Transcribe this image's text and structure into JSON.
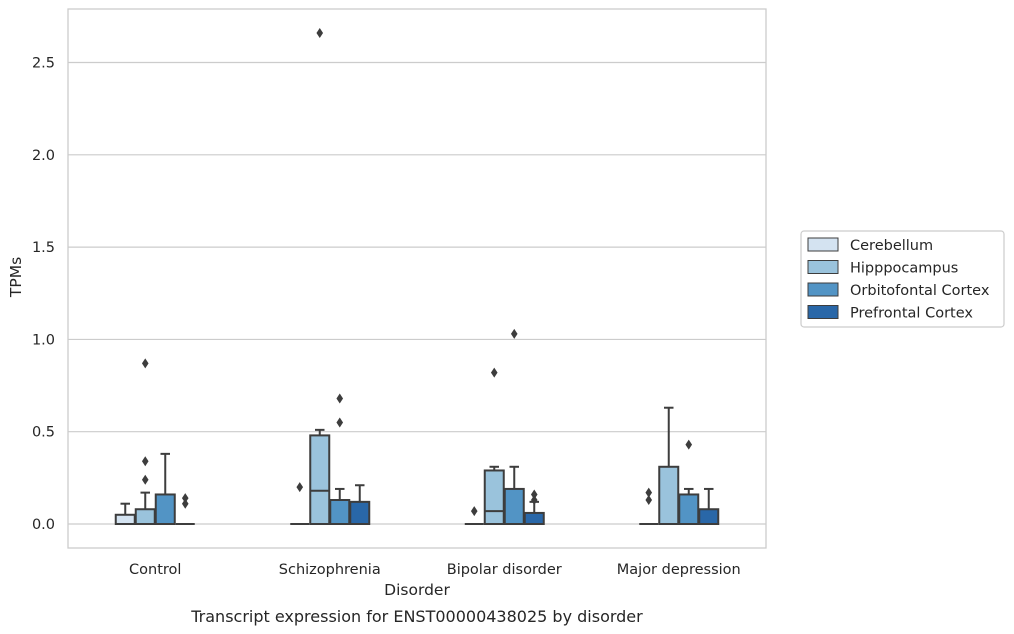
{
  "chart_data": {
    "type": "box",
    "title": "",
    "caption": "Transcript expression for ENST00000438025 by disorder",
    "xlabel": "Disorder",
    "ylabel": "TPMs",
    "ylim": [
      -0.13,
      2.79
    ],
    "yticks": [
      0.0,
      0.5,
      1.0,
      1.5,
      2.0,
      2.5
    ],
    "ytick_labels": [
      "0.0",
      "0.5",
      "1.0",
      "1.5",
      "2.0",
      "2.5"
    ],
    "grid": "horizontal",
    "legend_position": "right",
    "categories": [
      "Control",
      "Schizophrenia",
      "Bipolar disorder",
      "Major depression"
    ],
    "series": [
      {
        "name": "Cerebellum",
        "color": "#d4e3f1",
        "boxes": [
          {
            "whislo": 0.0,
            "q1": 0.0,
            "med": 0.0,
            "q3": 0.05,
            "whishi": 0.11,
            "fliers": []
          },
          {
            "whislo": 0.0,
            "q1": 0.0,
            "med": 0.0,
            "q3": 0.0,
            "whishi": 0.0,
            "fliers": [
              0.2
            ]
          },
          {
            "whislo": 0.0,
            "q1": 0.0,
            "med": 0.0,
            "q3": 0.0,
            "whishi": 0.0,
            "fliers": [
              0.07
            ]
          },
          {
            "whislo": 0.0,
            "q1": 0.0,
            "med": 0.0,
            "q3": 0.0,
            "whishi": 0.0,
            "fliers": [
              0.13,
              0.17
            ]
          }
        ]
      },
      {
        "name": "Hipppocampus",
        "color": "#9ac3dc",
        "boxes": [
          {
            "whislo": 0.0,
            "q1": 0.0,
            "med": 0.0,
            "q3": 0.08,
            "whishi": 0.17,
            "fliers": [
              0.24,
              0.34,
              0.87
            ]
          },
          {
            "whislo": 0.0,
            "q1": 0.0,
            "med": 0.18,
            "q3": 0.48,
            "whishi": 0.51,
            "fliers": [
              2.66
            ]
          },
          {
            "whislo": 0.0,
            "q1": 0.0,
            "med": 0.07,
            "q3": 0.29,
            "whishi": 0.31,
            "fliers": [
              0.82
            ]
          },
          {
            "whislo": 0.0,
            "q1": 0.0,
            "med": 0.0,
            "q3": 0.31,
            "whishi": 0.63,
            "fliers": []
          }
        ]
      },
      {
        "name": "Orbitofontal Cortex",
        "color": "#5294c5",
        "boxes": [
          {
            "whislo": 0.0,
            "q1": 0.0,
            "med": 0.0,
            "q3": 0.16,
            "whishi": 0.38,
            "fliers": []
          },
          {
            "whislo": 0.0,
            "q1": 0.0,
            "med": 0.0,
            "q3": 0.13,
            "whishi": 0.19,
            "fliers": [
              0.55,
              0.68
            ]
          },
          {
            "whislo": 0.0,
            "q1": 0.0,
            "med": 0.0,
            "q3": 0.19,
            "whishi": 0.31,
            "fliers": [
              1.03
            ]
          },
          {
            "whislo": 0.0,
            "q1": 0.0,
            "med": 0.0,
            "q3": 0.16,
            "whishi": 0.19,
            "fliers": [
              0.43
            ]
          }
        ]
      },
      {
        "name": "Prefrontal Cortex",
        "color": "#2967a8",
        "boxes": [
          {
            "whislo": 0.0,
            "q1": 0.0,
            "med": 0.0,
            "q3": 0.0,
            "whishi": 0.0,
            "fliers": [
              0.11,
              0.14
            ]
          },
          {
            "whislo": 0.0,
            "q1": 0.0,
            "med": 0.0,
            "q3": 0.12,
            "whishi": 0.21,
            "fliers": []
          },
          {
            "whislo": 0.0,
            "q1": 0.0,
            "med": 0.0,
            "q3": 0.06,
            "whishi": 0.12,
            "fliers": [
              0.13,
              0.16
            ]
          },
          {
            "whislo": 0.0,
            "q1": 0.0,
            "med": 0.0,
            "q3": 0.08,
            "whishi": 0.19,
            "fliers": []
          }
        ]
      }
    ]
  }
}
